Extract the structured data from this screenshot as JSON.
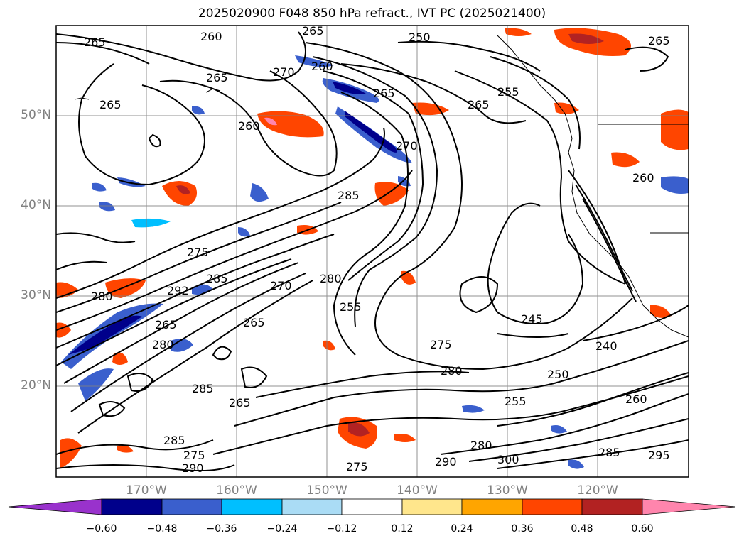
{
  "title": "2025020900 F048 850 hPa refract., IVT PC (2025021400)",
  "map": {
    "lat_labels": [
      "50°N",
      "40°N",
      "30°N",
      "20°N"
    ],
    "lon_labels": [
      "170°W",
      "160°W",
      "150°W",
      "140°W",
      "130°W",
      "120°W"
    ],
    "contour_labels": [
      "265",
      "260",
      "265",
      "250",
      "265",
      "265",
      "270",
      "260",
      "265",
      "255",
      "265",
      "265",
      "260",
      "270",
      "285",
      "260",
      "275",
      "280",
      "292",
      "285",
      "270",
      "280",
      "255",
      "265",
      "265",
      "280",
      "245",
      "275",
      "240",
      "280",
      "285",
      "250",
      "255",
      "260",
      "265",
      "285",
      "275",
      "290",
      "275",
      "280",
      "290",
      "300",
      "285",
      "295"
    ]
  },
  "colorbar": {
    "ticks": [
      "−0.60",
      "−0.48",
      "−0.36",
      "−0.24",
      "−0.12",
      "0.12",
      "0.24",
      "0.36",
      "0.48",
      "0.60"
    ],
    "colors": [
      "#9932cc",
      "#00008b",
      "#3a5fcd",
      "#00bfff",
      "#aadcf5",
      "#ffffff",
      "#ffe68c",
      "#ffa500",
      "#ff4500",
      "#b22222",
      "#ff85ad"
    ]
  }
}
